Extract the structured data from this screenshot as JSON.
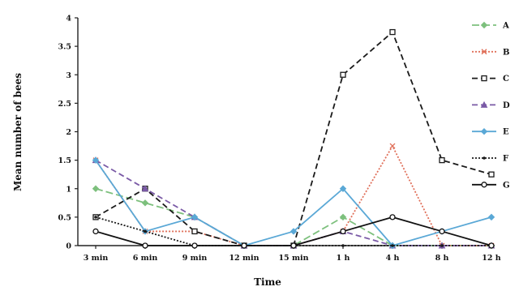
{
  "chart_data": {
    "type": "line",
    "xlabel": "Time",
    "ylabel": "Mean number of bees",
    "categories": [
      "3 min",
      "6 min",
      "9 min",
      "12 min",
      "15 min",
      "1 h",
      "4 h",
      "8 h",
      "12 h"
    ],
    "yticks": [
      "0",
      "0.5",
      "1",
      "1.5",
      "2",
      "2.5",
      "3",
      "3.5",
      "4"
    ],
    "ylim": [
      0,
      4
    ],
    "grid": false,
    "legend_position": "right",
    "series": [
      {
        "name": "A",
        "color": "#7dc07d",
        "dash": "9,4",
        "marker": "diamond",
        "values": [
          1.0,
          0.75,
          0.5,
          0,
          0,
          0.5,
          0,
          0,
          0
        ]
      },
      {
        "name": "B",
        "color": "#e0705a",
        "dash": "2,2",
        "marker": "x",
        "values": [
          1.5,
          0.25,
          0.25,
          0,
          0,
          0.25,
          1.75,
          0,
          0
        ]
      },
      {
        "name": "C",
        "color": "#1a1a1a",
        "dash": "7,4",
        "marker": "square",
        "values": [
          0.5,
          1.0,
          0.25,
          0,
          0,
          3.0,
          3.75,
          1.5,
          1.25
        ]
      },
      {
        "name": "D",
        "color": "#7a5aa6",
        "dash": "7,4",
        "marker": "triangle",
        "values": [
          1.5,
          1.0,
          0.5,
          0,
          0,
          0.25,
          0,
          0,
          0
        ]
      },
      {
        "name": "E",
        "color": "#5aa8d6",
        "dash": "",
        "marker": "diamond",
        "values": [
          1.5,
          0.25,
          0.5,
          0,
          0.25,
          1.0,
          0,
          0.25,
          0.5
        ]
      },
      {
        "name": "F",
        "color": "#1a1a1a",
        "dash": "2,2",
        "marker": "dot",
        "values": [
          0.5,
          0.25,
          0,
          0,
          0,
          0,
          0,
          0,
          0
        ]
      },
      {
        "name": "G",
        "color": "#111111",
        "dash": "",
        "marker": "circle",
        "values": [
          0.25,
          0,
          0,
          0,
          0,
          0.25,
          0.5,
          0.25,
          0
        ]
      }
    ]
  }
}
